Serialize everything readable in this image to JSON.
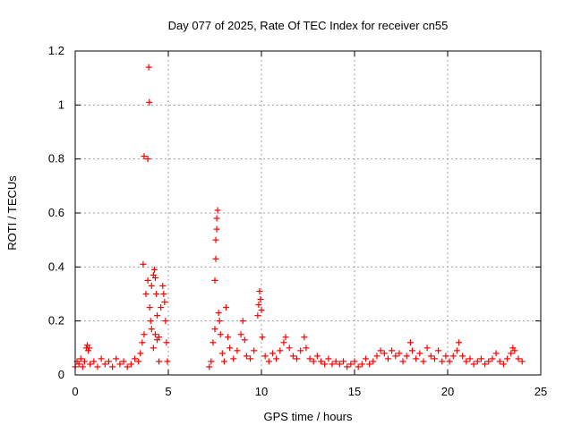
{
  "chart_data": {
    "type": "scatter",
    "title": "Day 077 of 2025, Rate Of TEC Index for receiver cn55",
    "xlabel": "GPS time / hours",
    "ylabel": "ROTI / TECUs",
    "xlim": [
      0,
      25
    ],
    "ylim": [
      0,
      1.2
    ],
    "xticks": [
      0,
      5,
      10,
      15,
      20,
      25
    ],
    "xtick_labels": [
      "0",
      "5",
      "10",
      "15",
      "20",
      "25"
    ],
    "yticks": [
      0,
      0.2,
      0.4,
      0.6,
      0.8,
      1,
      1.2
    ],
    "ytick_labels": [
      "0",
      "0.2",
      "0.4",
      "0.6",
      "0.8",
      "1",
      "1.2"
    ],
    "grid": true,
    "marker": "plus",
    "color": "#ff0000",
    "series": [
      {
        "points": [
          [
            0.0,
            0.03
          ],
          [
            0.1,
            0.05
          ],
          [
            0.2,
            0.04
          ],
          [
            0.3,
            0.06
          ],
          [
            0.4,
            0.03
          ],
          [
            0.5,
            0.05
          ],
          [
            0.6,
            0.1
          ],
          [
            0.65,
            0.11
          ],
          [
            0.7,
            0.09
          ],
          [
            0.75,
            0.1
          ],
          [
            0.8,
            0.04
          ],
          [
            1.0,
            0.05
          ],
          [
            1.2,
            0.03
          ],
          [
            1.4,
            0.06
          ],
          [
            1.6,
            0.04
          ],
          [
            1.8,
            0.05
          ],
          [
            2.0,
            0.03
          ],
          [
            2.2,
            0.06
          ],
          [
            2.4,
            0.04
          ],
          [
            2.6,
            0.05
          ],
          [
            2.8,
            0.03
          ],
          [
            3.0,
            0.04
          ],
          [
            3.2,
            0.06
          ],
          [
            3.4,
            0.05
          ],
          [
            3.5,
            0.08
          ],
          [
            3.6,
            0.12
          ],
          [
            3.7,
            0.15
          ],
          [
            3.65,
            0.41
          ],
          [
            3.7,
            0.81
          ],
          [
            3.9,
            0.8
          ],
          [
            3.95,
            1.14
          ],
          [
            3.98,
            1.01
          ],
          [
            3.8,
            0.3
          ],
          [
            3.9,
            0.35
          ],
          [
            4.0,
            0.25
          ],
          [
            4.05,
            0.2
          ],
          [
            4.1,
            0.33
          ],
          [
            4.2,
            0.37
          ],
          [
            4.25,
            0.39
          ],
          [
            4.3,
            0.36
          ],
          [
            4.35,
            0.3
          ],
          [
            4.4,
            0.22
          ],
          [
            4.2,
            0.1
          ],
          [
            4.3,
            0.15
          ],
          [
            4.5,
            0.05
          ],
          [
            4.6,
            0.25
          ],
          [
            4.7,
            0.33
          ],
          [
            4.75,
            0.3
          ],
          [
            4.8,
            0.27
          ],
          [
            4.85,
            0.2
          ],
          [
            4.9,
            0.12
          ],
          [
            4.95,
            0.05
          ],
          [
            4.1,
            0.17
          ],
          [
            4.4,
            0.13
          ],
          [
            4.5,
            0.14
          ],
          [
            7.2,
            0.03
          ],
          [
            7.3,
            0.05
          ],
          [
            7.4,
            0.12
          ],
          [
            7.5,
            0.17
          ],
          [
            7.5,
            0.35
          ],
          [
            7.55,
            0.43
          ],
          [
            7.55,
            0.5
          ],
          [
            7.6,
            0.54
          ],
          [
            7.6,
            0.58
          ],
          [
            7.65,
            0.61
          ],
          [
            7.7,
            0.23
          ],
          [
            7.75,
            0.2
          ],
          [
            7.8,
            0.15
          ],
          [
            7.9,
            0.08
          ],
          [
            8.0,
            0.05
          ],
          [
            8.1,
            0.25
          ],
          [
            8.2,
            0.14
          ],
          [
            8.3,
            0.1
          ],
          [
            8.5,
            0.06
          ],
          [
            8.7,
            0.09
          ],
          [
            8.9,
            0.15
          ],
          [
            9.0,
            0.2
          ],
          [
            9.1,
            0.13
          ],
          [
            9.2,
            0.07
          ],
          [
            9.4,
            0.06
          ],
          [
            9.6,
            0.09
          ],
          [
            9.8,
            0.22
          ],
          [
            9.85,
            0.26
          ],
          [
            9.9,
            0.31
          ],
          [
            9.95,
            0.28
          ],
          [
            10.0,
            0.24
          ],
          [
            10.05,
            0.14
          ],
          [
            10.2,
            0.07
          ],
          [
            10.4,
            0.05
          ],
          [
            10.6,
            0.08
          ],
          [
            10.8,
            0.06
          ],
          [
            11.0,
            0.09
          ],
          [
            11.2,
            0.12
          ],
          [
            11.3,
            0.14
          ],
          [
            11.5,
            0.1
          ],
          [
            11.7,
            0.07
          ],
          [
            11.9,
            0.06
          ],
          [
            12.1,
            0.09
          ],
          [
            12.3,
            0.14
          ],
          [
            12.4,
            0.1
          ],
          [
            12.6,
            0.06
          ],
          [
            12.8,
            0.05
          ],
          [
            13.0,
            0.07
          ],
          [
            13.2,
            0.05
          ],
          [
            13.4,
            0.04
          ],
          [
            13.6,
            0.06
          ],
          [
            13.8,
            0.04
          ],
          [
            14.0,
            0.05
          ],
          [
            14.2,
            0.04
          ],
          [
            14.4,
            0.05
          ],
          [
            14.6,
            0.03
          ],
          [
            14.8,
            0.04
          ],
          [
            15.0,
            0.05
          ],
          [
            15.2,
            0.03
          ],
          [
            15.4,
            0.04
          ],
          [
            15.6,
            0.06
          ],
          [
            15.8,
            0.04
          ],
          [
            16.0,
            0.05
          ],
          [
            16.2,
            0.07
          ],
          [
            16.4,
            0.09
          ],
          [
            16.6,
            0.08
          ],
          [
            16.8,
            0.06
          ],
          [
            17.0,
            0.09
          ],
          [
            17.2,
            0.07
          ],
          [
            17.4,
            0.08
          ],
          [
            17.6,
            0.05
          ],
          [
            17.8,
            0.07
          ],
          [
            18.0,
            0.12
          ],
          [
            18.1,
            0.09
          ],
          [
            18.3,
            0.06
          ],
          [
            18.5,
            0.08
          ],
          [
            18.7,
            0.05
          ],
          [
            18.9,
            0.1
          ],
          [
            19.1,
            0.07
          ],
          [
            19.3,
            0.06
          ],
          [
            19.5,
            0.09
          ],
          [
            19.7,
            0.05
          ],
          [
            19.9,
            0.07
          ],
          [
            20.1,
            0.05
          ],
          [
            20.3,
            0.07
          ],
          [
            20.5,
            0.09
          ],
          [
            20.6,
            0.12
          ],
          [
            20.8,
            0.07
          ],
          [
            21.0,
            0.05
          ],
          [
            21.2,
            0.06
          ],
          [
            21.4,
            0.04
          ],
          [
            21.6,
            0.05
          ],
          [
            21.8,
            0.06
          ],
          [
            22.0,
            0.04
          ],
          [
            22.2,
            0.05
          ],
          [
            22.4,
            0.06
          ],
          [
            22.6,
            0.08
          ],
          [
            22.8,
            0.05
          ],
          [
            23.0,
            0.04
          ],
          [
            23.2,
            0.06
          ],
          [
            23.4,
            0.08
          ],
          [
            23.5,
            0.1
          ],
          [
            23.6,
            0.09
          ],
          [
            23.8,
            0.06
          ],
          [
            24.0,
            0.05
          ]
        ]
      }
    ]
  }
}
